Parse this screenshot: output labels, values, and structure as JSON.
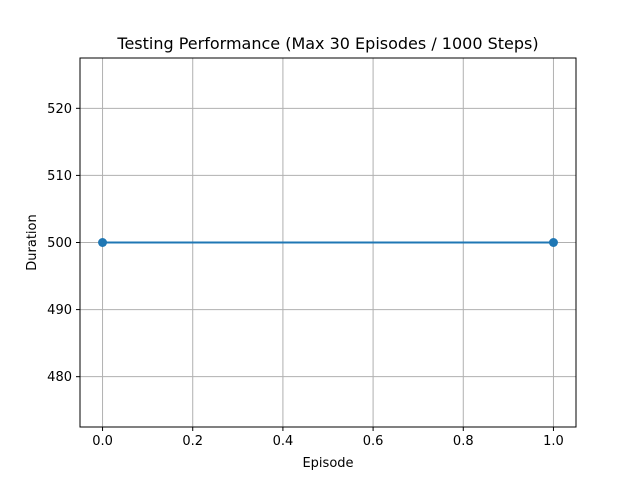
{
  "chart_data": {
    "type": "line",
    "title": "Testing Performance (Max 30 Episodes / 1000 Steps)",
    "xlabel": "Episode",
    "ylabel": "Duration",
    "x": [
      0.0,
      1.0
    ],
    "series": [
      {
        "values": [
          500,
          500
        ],
        "color": "#1f77b4",
        "marker": "circle"
      }
    ],
    "xlim": [
      -0.05,
      1.05
    ],
    "ylim": [
      472.5,
      527.5
    ],
    "xticks": [
      0.0,
      0.2,
      0.4,
      0.6,
      0.8,
      1.0
    ],
    "xtick_labels": [
      "0.0",
      "0.2",
      "0.4",
      "0.6",
      "0.8",
      "1.0"
    ],
    "yticks": [
      480,
      490,
      500,
      510,
      520
    ],
    "ytick_labels": [
      "480",
      "490",
      "500",
      "510",
      "520"
    ],
    "grid": true
  }
}
